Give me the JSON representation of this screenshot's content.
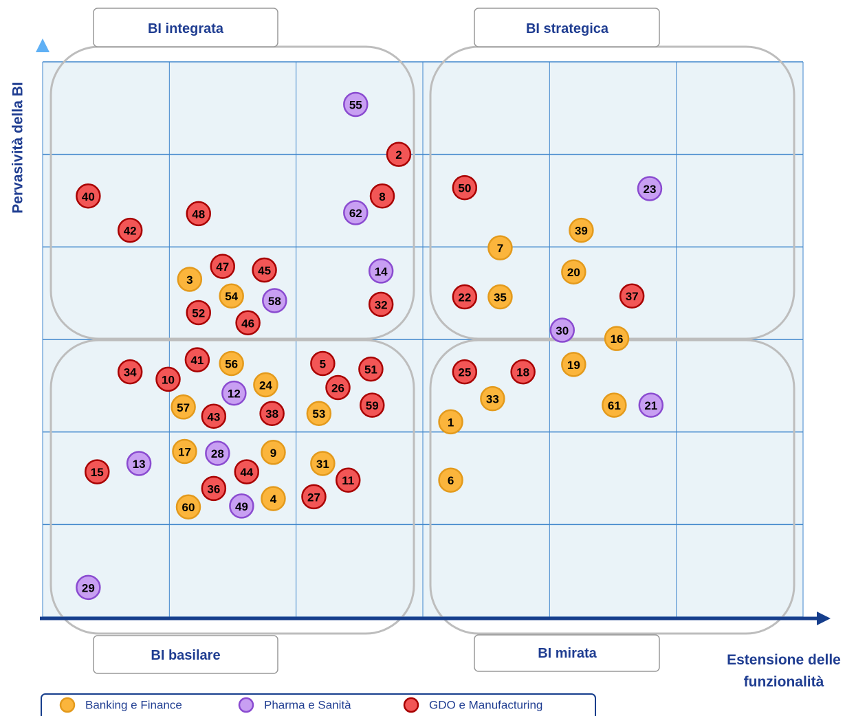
{
  "chart_data": {
    "type": "scatter",
    "ylabel": "Pervasività della BI",
    "xlabel": "Estensione delle funzionalità",
    "annotations": [
      "BI integrata",
      "BI strategica",
      "BI basilare",
      "BI mirata"
    ],
    "xlim": [
      0,
      6
    ],
    "ylim": [
      0,
      6
    ],
    "xticks": [
      0,
      1,
      2,
      3,
      4,
      5,
      6
    ],
    "yticks": [
      0,
      1,
      2,
      3,
      4,
      5,
      6
    ],
    "grid": true,
    "series": [
      {
        "name": "Banking e Finance",
        "color": "#fbb53c",
        "edgecolor": "#e39a1c",
        "labels": [
          "39",
          "7",
          "20",
          "3",
          "54",
          "35",
          "16",
          "56",
          "19",
          "24",
          "33",
          "57",
          "61",
          "53",
          "1",
          "17",
          "9",
          "31",
          "6",
          "4",
          "60"
        ],
        "x": [
          4.25,
          3.61,
          4.19,
          1.16,
          1.49,
          3.61,
          4.53,
          1.49,
          4.19,
          1.76,
          3.55,
          1.11,
          4.51,
          2.18,
          3.22,
          1.12,
          1.82,
          2.21,
          3.22,
          1.82,
          1.15
        ],
        "values": [
          4.18,
          3.99,
          3.73,
          3.65,
          3.47,
          3.46,
          3.01,
          2.74,
          2.73,
          2.51,
          2.36,
          2.27,
          2.29,
          2.2,
          2.11,
          1.79,
          1.78,
          1.66,
          1.48,
          1.28,
          1.19
        ]
      },
      {
        "name": "Pharma e Sanità",
        "color": "#c89ff2",
        "edgecolor": "#8a4bd0",
        "labels": [
          "55",
          "23",
          "62",
          "14",
          "58",
          "30",
          "12",
          "21",
          "28",
          "13",
          "49",
          "29"
        ],
        "x": [
          2.47,
          4.79,
          2.47,
          2.67,
          1.83,
          4.1,
          1.51,
          4.8,
          1.38,
          0.76,
          1.57,
          0.36
        ],
        "values": [
          5.54,
          4.63,
          4.37,
          3.74,
          3.42,
          3.1,
          2.42,
          2.29,
          1.77,
          1.66,
          1.2,
          0.32
        ]
      },
      {
        "name": "GDO e Manufacturing",
        "color": "#f25656",
        "edgecolor": "#a80000",
        "labels": [
          "2",
          "50",
          "8",
          "40",
          "48",
          "42",
          "47",
          "45",
          "22",
          "37",
          "32",
          "52",
          "46",
          "41",
          "5",
          "51",
          "34",
          "25",
          "18",
          "10",
          "26",
          "59",
          "38",
          "43",
          "15",
          "44",
          "11",
          "36",
          "27"
        ],
        "x": [
          2.81,
          3.33,
          2.68,
          0.36,
          1.23,
          0.69,
          1.42,
          1.75,
          3.33,
          4.65,
          2.67,
          1.23,
          1.62,
          1.22,
          2.21,
          2.59,
          0.69,
          3.33,
          3.79,
          0.99,
          2.33,
          2.6,
          1.81,
          1.35,
          0.43,
          1.61,
          2.41,
          1.35,
          2.14
        ],
        "values": [
          5.0,
          4.64,
          4.55,
          4.55,
          4.36,
          4.18,
          3.79,
          3.75,
          3.46,
          3.47,
          3.38,
          3.29,
          3.18,
          2.78,
          2.74,
          2.68,
          2.65,
          2.65,
          2.65,
          2.57,
          2.48,
          2.29,
          2.2,
          2.17,
          1.57,
          1.57,
          1.48,
          1.39,
          1.3
        ]
      }
    ]
  }
}
